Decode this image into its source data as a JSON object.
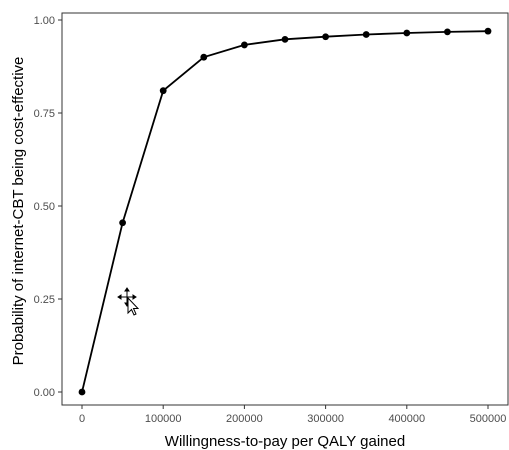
{
  "chart_data": {
    "type": "line",
    "xlabel": "Willingness-to-pay per QALY gained",
    "ylabel": "Probability of internet-CBT being cost-effective",
    "xlim": [
      0,
      500000
    ],
    "ylim": [
      0,
      1
    ],
    "x_ticks": [
      0,
      100000,
      200000,
      300000,
      400000,
      500000
    ],
    "x_tick_labels": [
      "0",
      "100000",
      "200000",
      "300000",
      "400000",
      "500000"
    ],
    "y_ticks": [
      0,
      0.25,
      0.5,
      0.75,
      1
    ],
    "y_tick_labels": [
      "0.00",
      "0.25",
      "0.50",
      "0.75",
      "1.00"
    ],
    "grid": false,
    "legend": "none",
    "series": [
      {
        "x": [
          0,
          50000,
          100000,
          150000,
          200000,
          250000,
          300000,
          350000,
          400000,
          450000,
          500000
        ],
        "values": [
          0.0,
          0.455,
          0.81,
          0.9,
          0.933,
          0.948,
          0.955,
          0.961,
          0.965,
          0.968,
          0.97
        ],
        "color": "#000000"
      }
    ]
  },
  "overlay": {
    "cursor_icon": "move-cursor-icon"
  }
}
